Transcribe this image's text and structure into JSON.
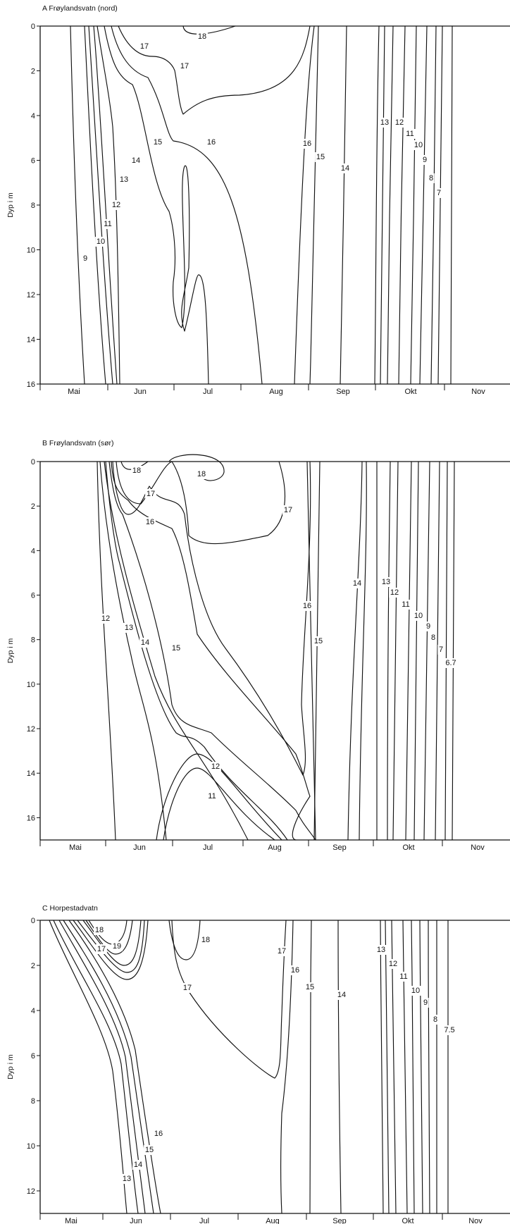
{
  "chart_data": [
    {
      "type": "isopleth",
      "title": "A Frøylandsvatn (nord)",
      "ylabel": "Dyp i m",
      "ylim": [
        0,
        16
      ],
      "y_ticks": [
        0,
        2,
        4,
        6,
        8,
        10,
        12,
        14,
        16
      ],
      "months": [
        "Mai",
        "Jun",
        "Jul",
        "Aug",
        "Sep",
        "Okt",
        "Nov"
      ],
      "contour_labels": [
        "9",
        "10",
        "11",
        "12",
        "13",
        "14",
        "15",
        "16",
        "17",
        "18",
        "17",
        "16",
        "15",
        "14",
        "13",
        "12",
        "11",
        "10",
        "9",
        "8",
        "7"
      ]
    },
    {
      "type": "isopleth",
      "title": "B Frøylandsvatn (sør)",
      "ylabel": "Dyp i m",
      "ylim": [
        0,
        17
      ],
      "y_ticks": [
        0,
        2,
        4,
        6,
        8,
        10,
        12,
        14,
        16
      ],
      "months": [
        "Mai",
        "Jun",
        "Jul",
        "Aug",
        "Sep",
        "Okt",
        "Nov"
      ],
      "contour_labels": [
        "18",
        "17",
        "16",
        "18",
        "17",
        "12",
        "13",
        "14",
        "15",
        "12",
        "11",
        "16",
        "15",
        "14",
        "13",
        "12",
        "11",
        "10",
        "9",
        "8",
        "7",
        "6.7"
      ]
    },
    {
      "type": "isopleth",
      "title": "C Horpestadvatn",
      "ylabel": "Dyp i m",
      "ylim": [
        0,
        13
      ],
      "y_ticks": [
        0,
        2,
        4,
        6,
        8,
        10,
        12
      ],
      "months": [
        "Mai",
        "Jun",
        "Jul",
        "Aug",
        "Sep",
        "Okt",
        "Nov"
      ],
      "contour_labels": [
        "18",
        "17",
        "19",
        "18",
        "17",
        "17",
        "16",
        "15",
        "14",
        "13",
        "14",
        "15",
        "16",
        "13",
        "12",
        "11",
        "10",
        "9",
        "8",
        "7.5"
      ]
    }
  ]
}
